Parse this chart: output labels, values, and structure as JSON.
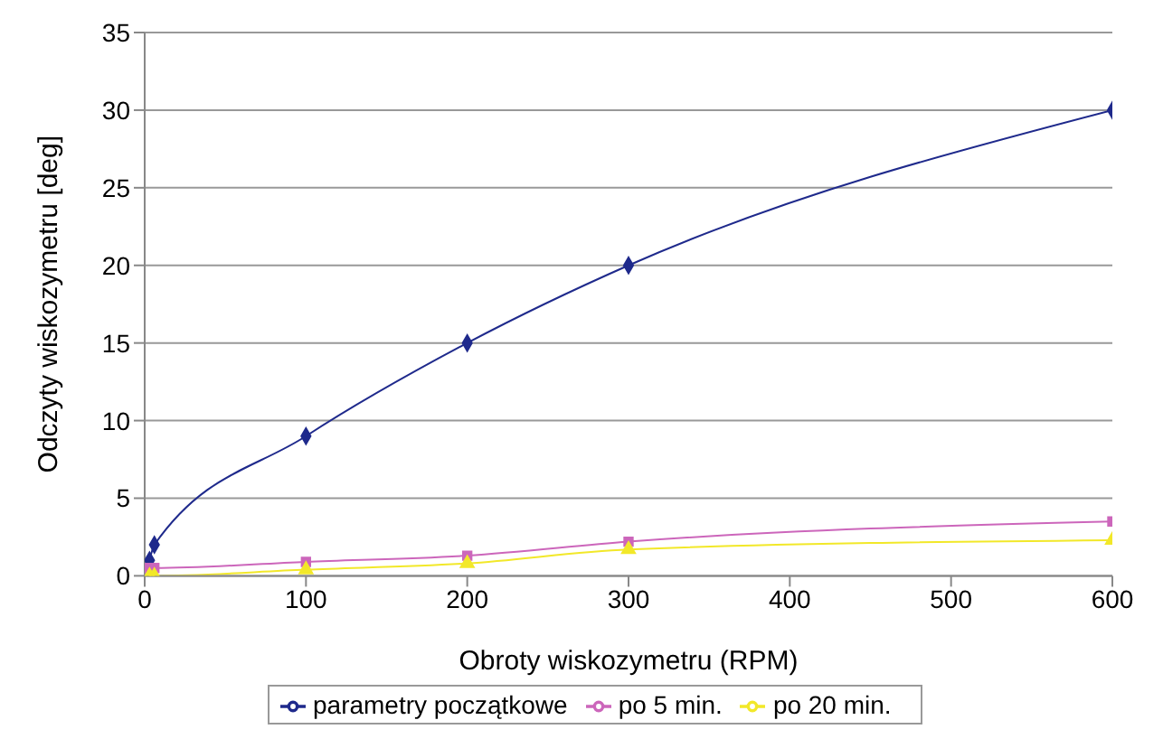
{
  "chart_data": {
    "type": "line",
    "xlabel": "Obroty wiskozymetru (RPM)",
    "ylabel": "Odczyty wiskozymetru [deg]",
    "x": [
      3,
      6,
      100,
      200,
      300,
      600
    ],
    "series": [
      {
        "name": "parametry początkowe",
        "color": "#1f2a8c",
        "marker": "diamond",
        "values": [
          1,
          2,
          9,
          15,
          20,
          30
        ]
      },
      {
        "name": "po 5 min.",
        "color": "#cc66bb",
        "marker": "square",
        "values": [
          0.5,
          0.5,
          0.9,
          1.3,
          2.2,
          3.5
        ]
      },
      {
        "name": "po 20 min.",
        "color": "#f2e829",
        "marker": "triangle",
        "values": [
          0,
          0,
          0.4,
          0.8,
          1.7,
          2.3
        ]
      }
    ],
    "xlim": [
      0,
      600
    ],
    "xticks": [
      0,
      100,
      200,
      300,
      400,
      500,
      600
    ],
    "ylim": [
      0,
      35
    ],
    "yticks": [
      0,
      5,
      10,
      15,
      20,
      25,
      30,
      35
    ],
    "grid": "y",
    "legend": "bottom"
  }
}
